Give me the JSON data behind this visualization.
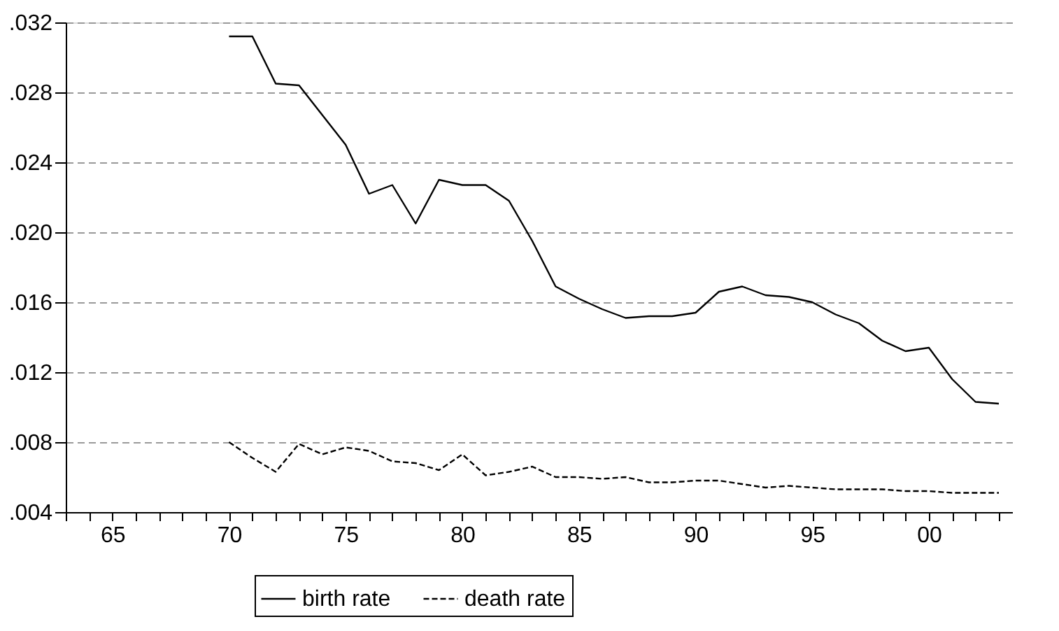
{
  "chart_data": {
    "type": "line",
    "x": [
      1970,
      1971,
      1972,
      1973,
      1974,
      1975,
      1976,
      1977,
      1978,
      1979,
      1980,
      1981,
      1982,
      1983,
      1984,
      1985,
      1986,
      1987,
      1988,
      1989,
      1990,
      1991,
      1992,
      1993,
      1994,
      1995,
      1996,
      1997,
      1998,
      1999,
      2000,
      2001,
      2002,
      2003
    ],
    "series": [
      {
        "name": "birth rate",
        "color": "#000000",
        "line_style": "solid",
        "values": [
          0.0312,
          0.0312,
          0.0285,
          0.0284,
          0.0267,
          0.025,
          0.0222,
          0.0227,
          0.0205,
          0.023,
          0.0227,
          0.0227,
          0.0218,
          0.0195,
          0.0169,
          0.0162,
          0.0156,
          0.0151,
          0.0152,
          0.0152,
          0.0154,
          0.0166,
          0.0169,
          0.0164,
          0.0163,
          0.016,
          0.0153,
          0.0148,
          0.0138,
          0.0132,
          0.0134,
          0.0116,
          0.0103,
          0.0102
        ]
      },
      {
        "name": "death rate",
        "color": "#000000",
        "line_style": "dashed",
        "values": [
          0.008,
          0.0071,
          0.0063,
          0.0079,
          0.0073,
          0.0077,
          0.0075,
          0.0069,
          0.0068,
          0.0064,
          0.0073,
          0.0061,
          0.0063,
          0.0066,
          0.006,
          0.006,
          0.0059,
          0.006,
          0.0057,
          0.0057,
          0.0058,
          0.0058,
          0.0056,
          0.0054,
          0.0055,
          0.0054,
          0.0053,
          0.0053,
          0.0053,
          0.0052,
          0.0052,
          0.0051,
          0.0051,
          0.0051
        ]
      }
    ],
    "xlim": [
      1963,
      2003.6
    ],
    "xticks": [
      {
        "value": 1963,
        "label": null
      },
      {
        "value": 1964,
        "label": null
      },
      {
        "value": 1965,
        "label": "65"
      },
      {
        "value": 1966,
        "label": null
      },
      {
        "value": 1967,
        "label": null
      },
      {
        "value": 1968,
        "label": null
      },
      {
        "value": 1969,
        "label": null
      },
      {
        "value": 1970,
        "label": "70"
      },
      {
        "value": 1971,
        "label": null
      },
      {
        "value": 1972,
        "label": null
      },
      {
        "value": 1973,
        "label": null
      },
      {
        "value": 1974,
        "label": null
      },
      {
        "value": 1975,
        "label": "75"
      },
      {
        "value": 1976,
        "label": null
      },
      {
        "value": 1977,
        "label": null
      },
      {
        "value": 1978,
        "label": null
      },
      {
        "value": 1979,
        "label": null
      },
      {
        "value": 1980,
        "label": "80"
      },
      {
        "value": 1981,
        "label": null
      },
      {
        "value": 1982,
        "label": null
      },
      {
        "value": 1983,
        "label": null
      },
      {
        "value": 1984,
        "label": null
      },
      {
        "value": 1985,
        "label": "85"
      },
      {
        "value": 1986,
        "label": null
      },
      {
        "value": 1987,
        "label": null
      },
      {
        "value": 1988,
        "label": null
      },
      {
        "value": 1989,
        "label": null
      },
      {
        "value": 1990,
        "label": "90"
      },
      {
        "value": 1991,
        "label": null
      },
      {
        "value": 1992,
        "label": null
      },
      {
        "value": 1993,
        "label": null
      },
      {
        "value": 1994,
        "label": null
      },
      {
        "value": 1995,
        "label": "95"
      },
      {
        "value": 1996,
        "label": null
      },
      {
        "value": 1997,
        "label": null
      },
      {
        "value": 1998,
        "label": null
      },
      {
        "value": 1999,
        "label": null
      },
      {
        "value": 2000,
        "label": "00"
      },
      {
        "value": 2001,
        "label": null
      },
      {
        "value": 2002,
        "label": null
      },
      {
        "value": 2003,
        "label": null
      }
    ],
    "ylim": [
      0.004,
      0.032
    ],
    "yticks": [
      {
        "value": 0.004,
        "label": ".004"
      },
      {
        "value": 0.008,
        "label": ".008"
      },
      {
        "value": 0.012,
        "label": ".012"
      },
      {
        "value": 0.016,
        "label": ".016"
      },
      {
        "value": 0.02,
        "label": ".020"
      },
      {
        "value": 0.024,
        "label": ".024"
      },
      {
        "value": 0.028,
        "label": ".028"
      },
      {
        "value": 0.032,
        "label": ".032"
      }
    ],
    "grid": "y",
    "legend": "bottom"
  }
}
